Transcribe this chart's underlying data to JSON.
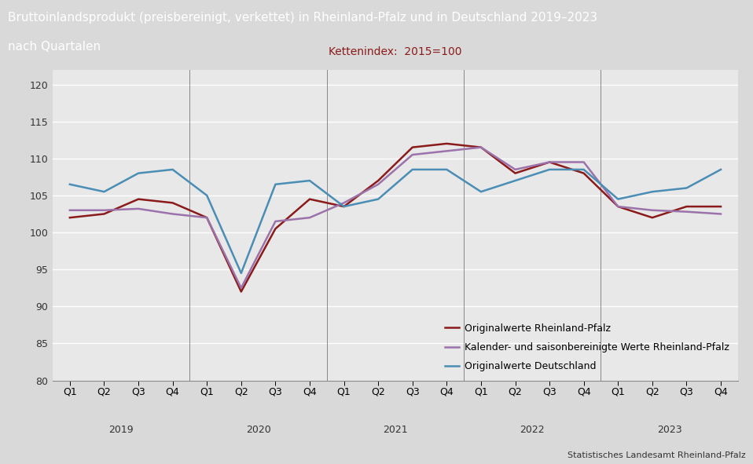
{
  "title_line1": "Bruttoinlandsprodukt (preisbereinigt, verkettet) in Rheinland-Pfalz und in Deutschland 2019–2023",
  "title_line2": "nach Quartalen",
  "subtitle": "Kettenindex:  2015=100",
  "source": "Statistisches Landesamt Rheinland-Pfalz",
  "ylim": [
    80,
    122
  ],
  "yticks": [
    80,
    85,
    90,
    95,
    100,
    105,
    110,
    115,
    120
  ],
  "years": [
    2019,
    2020,
    2021,
    2022,
    2023
  ],
  "quarters": [
    "Q1",
    "Q2",
    "Q3",
    "Q4",
    "Q1",
    "Q2",
    "Q3",
    "Q4",
    "Q1",
    "Q2",
    "Q3",
    "Q4",
    "Q1",
    "Q2",
    "Q3",
    "Q4",
    "Q1",
    "Q2",
    "Q3",
    "Q4"
  ],
  "rlp_original": [
    102.0,
    102.5,
    104.5,
    104.0,
    102.0,
    92.0,
    100.5,
    104.5,
    103.5,
    107.0,
    111.5,
    112.0,
    111.5,
    108.0,
    109.5,
    108.0,
    103.5,
    102.0,
    103.5,
    103.5
  ],
  "rlp_adjusted": [
    103.0,
    103.0,
    103.2,
    102.5,
    102.0,
    92.5,
    101.5,
    102.0,
    104.0,
    106.5,
    110.5,
    111.0,
    111.5,
    108.5,
    109.5,
    109.5,
    103.5,
    103.0,
    102.8,
    102.5
  ],
  "de_original": [
    106.5,
    105.5,
    108.0,
    108.5,
    105.0,
    94.5,
    106.5,
    107.0,
    103.5,
    104.5,
    108.5,
    108.5,
    105.5,
    107.0,
    108.5,
    108.5,
    104.5,
    105.5,
    106.0,
    108.5
  ],
  "color_rlp_orig": "#8B1A1A",
  "color_rlp_adj": "#9B72AA",
  "color_de_orig": "#4A8DB5",
  "legend_labels": [
    "Originalwerte Rheinland-Pfalz",
    "Kalender- und saisonbereinigte Werte Rheinland-Pfalz",
    "Originalwerte Deutschland"
  ],
  "header_color": "#6B1020",
  "header_text_color": "#FFFFFF",
  "title_color": "#1a1a1a",
  "subtitle_color": "#8B1A1A",
  "background_color": "#D9D9D9",
  "plot_background": "#E8E8E8",
  "grid_color": "#FFFFFF",
  "title_fontsize": 11,
  "subtitle_fontsize": 10,
  "tick_fontsize": 9,
  "legend_fontsize": 9,
  "source_fontsize": 8,
  "line_width": 1.8
}
